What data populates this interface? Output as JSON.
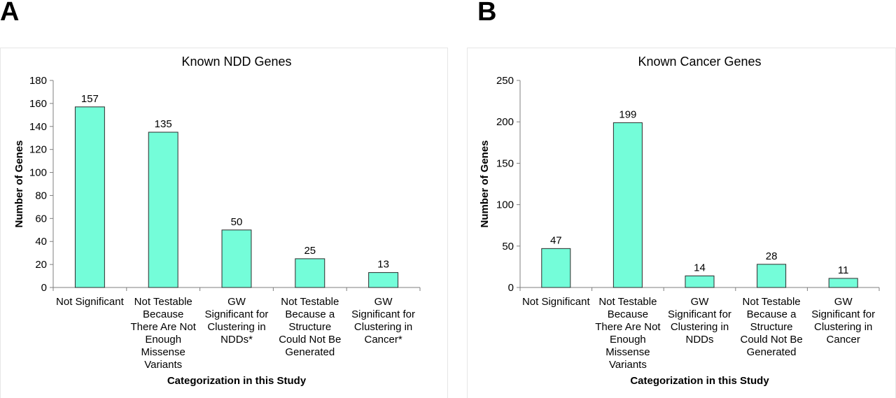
{
  "panels": [
    {
      "letter": "A",
      "chart_data": {
        "type": "bar",
        "title": "Known NDD Genes",
        "xlabel": "Categorization in this Study",
        "ylabel": "Number of Genes",
        "ylim": [
          0,
          180
        ],
        "yticks": [
          0,
          20,
          40,
          60,
          80,
          100,
          120,
          140,
          160,
          180
        ],
        "grid": false,
        "bar_color": "#74fdd9",
        "categories": [
          [
            "Not Significant"
          ],
          [
            "Not Testable",
            "Because",
            "There Are Not",
            "Enough",
            "Missense",
            "Variants"
          ],
          [
            "GW",
            "Significant for",
            "Clustering in",
            "NDDs*"
          ],
          [
            "Not Testable",
            "Because a",
            "Structure",
            "Could Not Be",
            "Generated"
          ],
          [
            "GW",
            "Significant for",
            "Clustering in",
            "Cancer*"
          ]
        ],
        "values": [
          157,
          135,
          50,
          25,
          13
        ]
      }
    },
    {
      "letter": "B",
      "chart_data": {
        "type": "bar",
        "title": "Known Cancer Genes",
        "xlabel": "Categorization in this Study",
        "ylabel": "Number of Genes",
        "ylim": [
          0,
          250
        ],
        "yticks": [
          0,
          50,
          100,
          150,
          200,
          250
        ],
        "grid": false,
        "bar_color": "#74fdd9",
        "categories": [
          [
            "Not Significant"
          ],
          [
            "Not Testable",
            "Because",
            "There Are Not",
            "Enough",
            "Missense",
            "Variants"
          ],
          [
            "GW",
            "Significant for",
            "Clustering in",
            "NDDs"
          ],
          [
            "Not Testable",
            "Because a",
            "Structure",
            "Could Not Be",
            "Generated"
          ],
          [
            "GW",
            "Significant for",
            "Clustering in",
            "Cancer"
          ]
        ],
        "values": [
          47,
          199,
          14,
          28,
          11
        ]
      }
    }
  ]
}
